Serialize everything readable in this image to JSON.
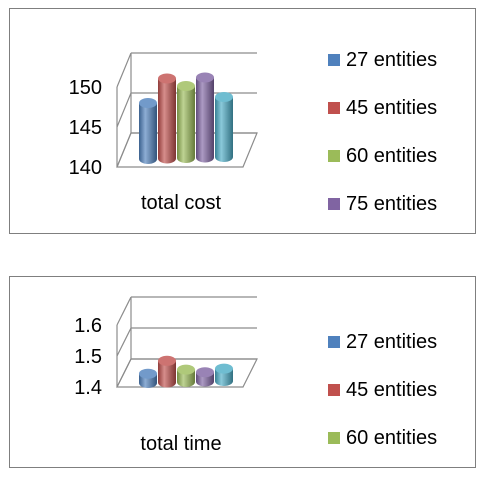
{
  "chart_data": [
    {
      "type": "bar",
      "title": "",
      "xlabel": "",
      "ylabel": "",
      "categories": [
        "total cost"
      ],
      "ylim": [
        140,
        150
      ],
      "yticks": [
        "140",
        "145",
        "150"
      ],
      "grid": true,
      "legend_position": "right",
      "series": [
        {
          "name": "27 entities",
          "values": [
            147
          ],
          "color": "#4F81BD"
        },
        {
          "name": "45 entities",
          "values": [
            150
          ],
          "color": "#C0504D"
        },
        {
          "name": "60 entities",
          "values": [
            149
          ],
          "color": "#9BBB59"
        },
        {
          "name": "75 entities",
          "values": [
            150
          ],
          "color": "#8064A2"
        },
        {
          "name": "",
          "values": [
            147.5
          ],
          "color": "#4BACC6"
        }
      ]
    },
    {
      "type": "bar",
      "title": "",
      "xlabel": "",
      "ylabel": "",
      "categories": [
        "total time"
      ],
      "ylim": [
        1.4,
        1.6
      ],
      "yticks": [
        "1.4",
        "1.5",
        "1.6"
      ],
      "grid": true,
      "legend_position": "right",
      "series": [
        {
          "name": "27 entities",
          "values": [
            1.43
          ],
          "color": "#4F81BD"
        },
        {
          "name": "45 entities",
          "values": [
            1.47
          ],
          "color": "#C0504D"
        },
        {
          "name": "60 entities",
          "values": [
            1.44
          ],
          "color": "#9BBB59"
        },
        {
          "name": "",
          "values": [
            1.43
          ],
          "color": "#8064A2"
        },
        {
          "name": "",
          "values": [
            1.44
          ],
          "color": "#4BACC6"
        }
      ]
    }
  ]
}
